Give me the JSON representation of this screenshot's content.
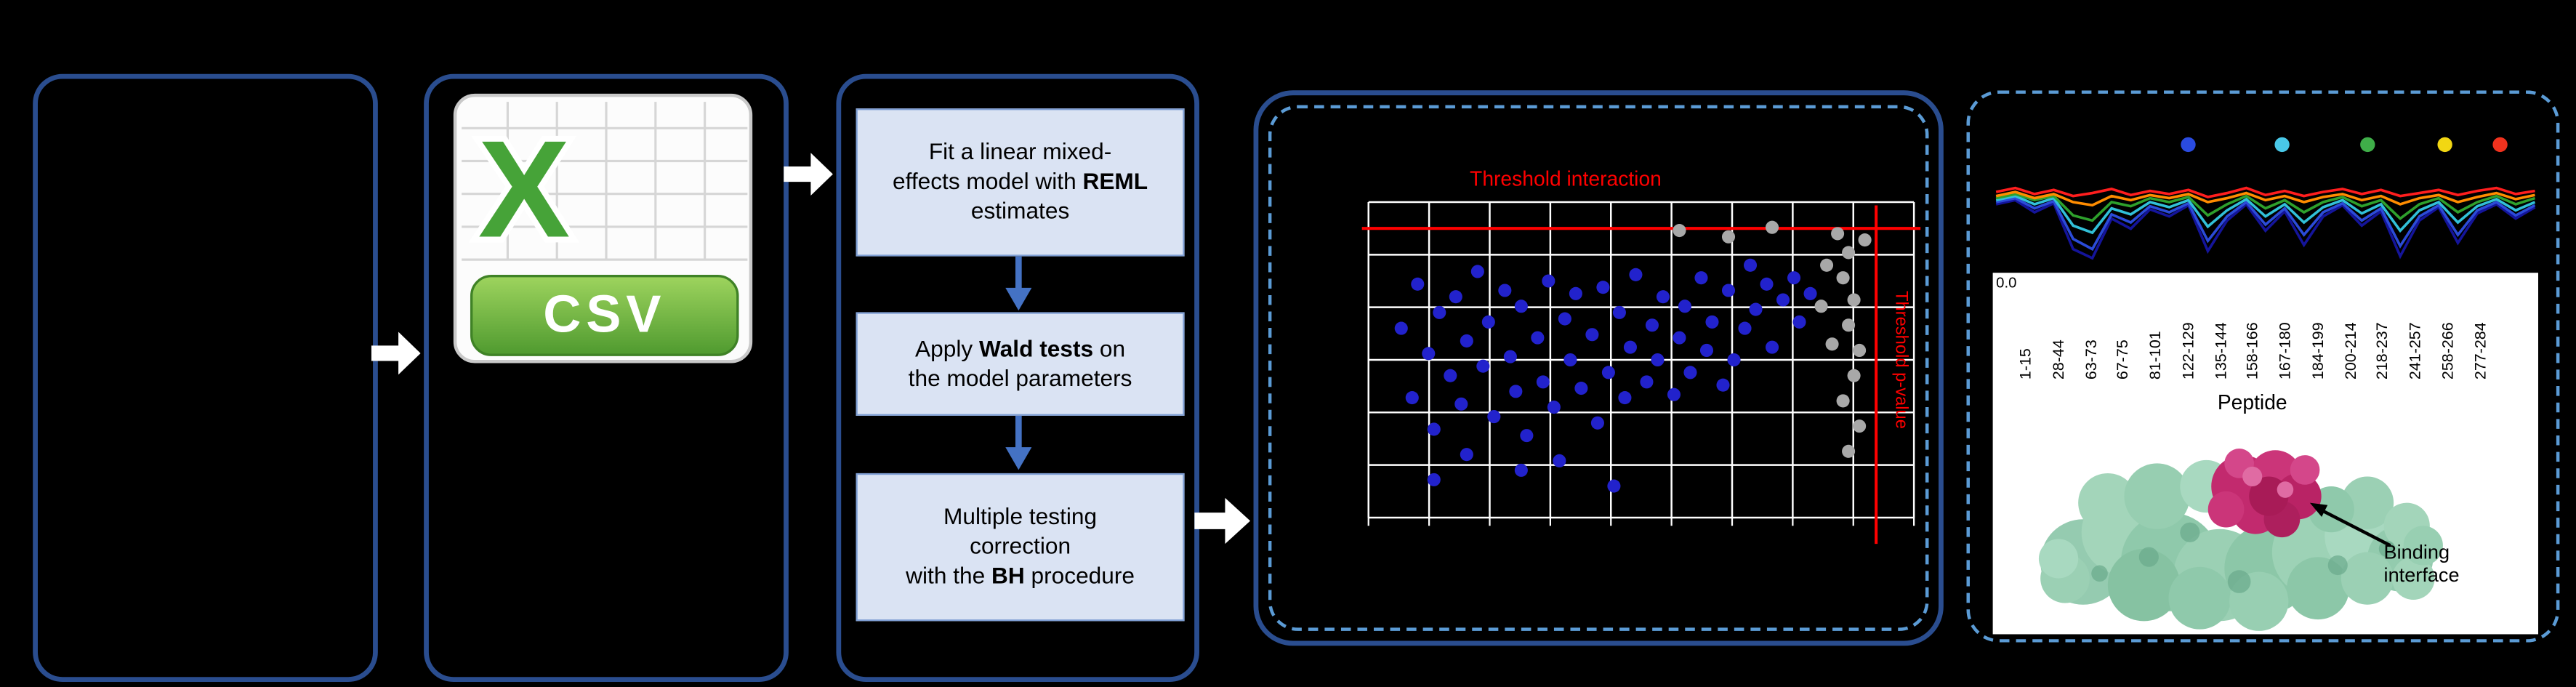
{
  "colors": {
    "scatter_blue": "#2222cc",
    "scatter_gray": "#a8a8a8",
    "threshold_red": "#ff0000"
  },
  "csv": {
    "letter": "X",
    "label": "CSV"
  },
  "steps": [
    {
      "pre": "Fit a linear mixed-\neffects model with ",
      "bold": "REML",
      "post": " estimates"
    },
    {
      "pre": "Apply ",
      "bold": "Wald tests",
      "post": " on\nthe model parameters"
    },
    {
      "pre": "Multiple testing\ncorrection\nwith the ",
      "bold": "BH",
      "post": " procedure"
    }
  ],
  "scatter": {
    "threshold_interaction_label": "Threshold interaction",
    "threshold_pvalue_label": "Threshold p-value",
    "blue_points": [
      [
        6,
        40
      ],
      [
        8,
        62
      ],
      [
        9,
        26
      ],
      [
        11,
        48
      ],
      [
        12,
        72
      ],
      [
        13,
        35
      ],
      [
        15,
        55
      ],
      [
        16,
        30
      ],
      [
        17,
        64
      ],
      [
        18,
        44
      ],
      [
        20,
        22
      ],
      [
        21,
        52
      ],
      [
        22,
        38
      ],
      [
        23,
        68
      ],
      [
        25,
        28
      ],
      [
        26,
        49
      ],
      [
        27,
        60
      ],
      [
        28,
        33
      ],
      [
        29,
        74
      ],
      [
        31,
        43
      ],
      [
        32,
        57
      ],
      [
        33,
        25
      ],
      [
        34,
        65
      ],
      [
        36,
        37
      ],
      [
        37,
        50
      ],
      [
        38,
        29
      ],
      [
        39,
        59
      ],
      [
        41,
        42
      ],
      [
        42,
        70
      ],
      [
        43,
        27
      ],
      [
        44,
        54
      ],
      [
        46,
        35
      ],
      [
        47,
        62
      ],
      [
        48,
        46
      ],
      [
        49,
        23
      ],
      [
        51,
        57
      ],
      [
        52,
        39
      ],
      [
        53,
        50
      ],
      [
        54,
        30
      ],
      [
        56,
        61
      ],
      [
        57,
        43
      ],
      [
        58,
        33
      ],
      [
        59,
        54
      ],
      [
        61,
        24
      ],
      [
        62,
        47
      ],
      [
        63,
        38
      ],
      [
        65,
        58
      ],
      [
        66,
        28
      ],
      [
        67,
        50
      ],
      [
        69,
        40
      ],
      [
        70,
        20
      ],
      [
        71,
        34
      ],
      [
        73,
        26
      ],
      [
        74,
        46
      ],
      [
        76,
        31
      ],
      [
        78,
        24
      ],
      [
        79,
        38
      ],
      [
        81,
        29
      ],
      [
        12,
        88
      ],
      [
        28,
        85
      ],
      [
        45,
        90
      ],
      [
        18,
        80
      ],
      [
        35,
        82
      ]
    ],
    "gray_points": [
      [
        86,
        10
      ],
      [
        88,
        16
      ],
      [
        87,
        24
      ],
      [
        89,
        31
      ],
      [
        88,
        39
      ],
      [
        90,
        47
      ],
      [
        89,
        55
      ],
      [
        87,
        63
      ],
      [
        90,
        71
      ],
      [
        88,
        79
      ],
      [
        84,
        20
      ],
      [
        85,
        45
      ],
      [
        57,
        9
      ],
      [
        66,
        11
      ],
      [
        74,
        8
      ],
      [
        91,
        12
      ],
      [
        83,
        33
      ]
    ]
  },
  "hdx": {
    "y_tick": "0.0",
    "x_axis_label": "Peptide",
    "annotation": "Binding interface",
    "peptides": [
      "1-15",
      "28-44",
      "63-73",
      "67-75",
      "81-101",
      "122-129",
      "135-144",
      "158-166",
      "167-180",
      "184-199",
      "200-214",
      "218-237",
      "241-257",
      "258-266",
      "277-284"
    ],
    "legend_dots": [
      {
        "x": 0.36,
        "color": "#2a4be0"
      },
      {
        "x": 0.53,
        "color": "#49c8e8"
      },
      {
        "x": 0.685,
        "color": "#3fae49"
      },
      {
        "x": 0.825,
        "color": "#f2d713"
      },
      {
        "x": 0.925,
        "color": "#f0321e"
      }
    ],
    "series": [
      {
        "color": "#14149a",
        "values": [
          0.44,
          0.4,
          0.52,
          0.43,
          0.88,
          0.97,
          0.58,
          0.68,
          0.49,
          0.56,
          0.45,
          0.9,
          0.6,
          0.44,
          0.7,
          0.51,
          0.84,
          0.56,
          0.45,
          0.65,
          0.51,
          0.95,
          0.6,
          0.47,
          0.82,
          0.53,
          0.44,
          0.58,
          0.47
        ]
      },
      {
        "color": "#2b4bd8",
        "values": [
          0.42,
          0.38,
          0.48,
          0.41,
          0.78,
          0.88,
          0.54,
          0.62,
          0.46,
          0.52,
          0.43,
          0.8,
          0.56,
          0.42,
          0.64,
          0.48,
          0.74,
          0.52,
          0.43,
          0.6,
          0.48,
          0.85,
          0.56,
          0.45,
          0.74,
          0.5,
          0.42,
          0.55,
          0.45
        ]
      },
      {
        "color": "#31c0d8",
        "values": [
          0.4,
          0.36,
          0.44,
          0.38,
          0.65,
          0.72,
          0.48,
          0.54,
          0.42,
          0.47,
          0.4,
          0.66,
          0.5,
          0.39,
          0.56,
          0.44,
          0.62,
          0.47,
          0.4,
          0.53,
          0.44,
          0.7,
          0.5,
          0.42,
          0.62,
          0.46,
          0.39,
          0.5,
          0.42
        ]
      },
      {
        "color": "#2ea02c",
        "values": [
          0.38,
          0.34,
          0.4,
          0.36,
          0.55,
          0.6,
          0.42,
          0.46,
          0.38,
          0.42,
          0.37,
          0.55,
          0.44,
          0.36,
          0.48,
          0.4,
          0.52,
          0.42,
          0.37,
          0.46,
          0.4,
          0.58,
          0.44,
          0.38,
          0.52,
          0.42,
          0.36,
          0.44,
          0.38
        ]
      },
      {
        "color": "#ff8c00",
        "values": [
          0.36,
          0.32,
          0.38,
          0.34,
          0.42,
          0.45,
          0.36,
          0.4,
          0.35,
          0.38,
          0.34,
          0.42,
          0.38,
          0.33,
          0.4,
          0.36,
          0.42,
          0.37,
          0.34,
          0.4,
          0.36,
          0.44,
          0.38,
          0.35,
          0.42,
          0.37,
          0.33,
          0.39,
          0.35
        ]
      },
      {
        "color": "#ff1e1e",
        "values": [
          0.32,
          0.28,
          0.34,
          0.3,
          0.36,
          0.33,
          0.29,
          0.35,
          0.31,
          0.34,
          0.3,
          0.37,
          0.33,
          0.28,
          0.35,
          0.31,
          0.36,
          0.32,
          0.29,
          0.34,
          0.3,
          0.36,
          0.33,
          0.3,
          0.35,
          0.31,
          0.28,
          0.34,
          0.31
        ]
      }
    ]
  }
}
